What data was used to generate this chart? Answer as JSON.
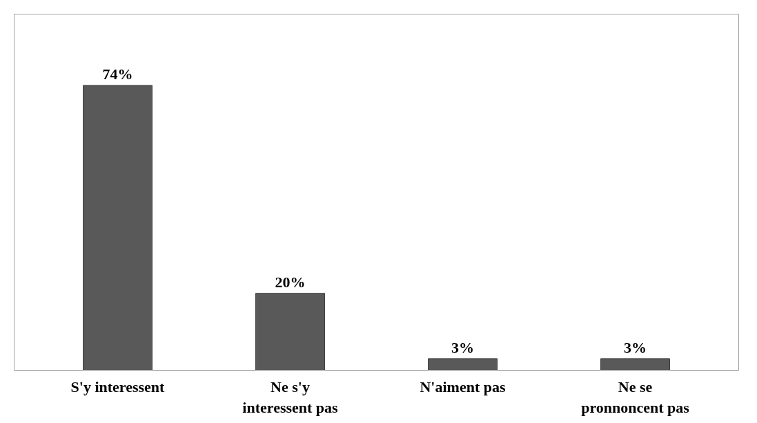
{
  "chart_data": {
    "type": "bar",
    "categories": [
      "S'y interessent",
      "Ne s'y interessent pas",
      "N'aiment pas",
      "Ne se pronnoncent pas"
    ],
    "values": [
      74,
      20,
      3,
      3
    ],
    "color": "#595959",
    "value_labels": [
      "74%",
      "20%",
      "3%",
      "3%"
    ]
  }
}
